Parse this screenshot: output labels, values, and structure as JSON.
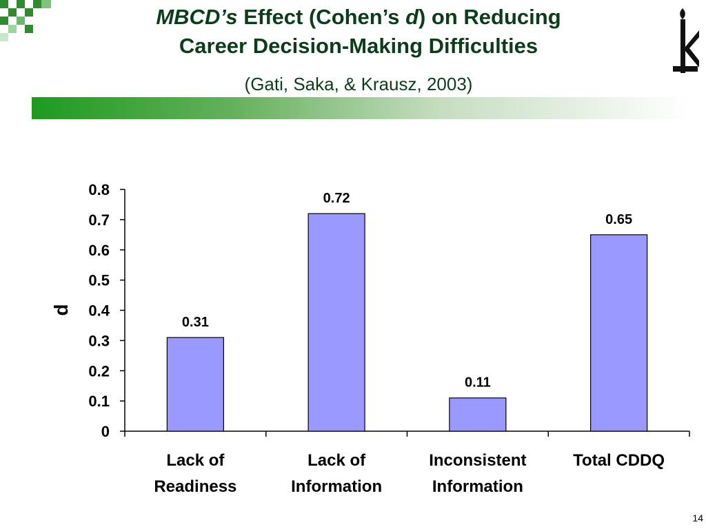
{
  "slide": {
    "title_line1_em": "MBCD’s",
    "title_line1_a": " Effect (Cohen’s ",
    "title_line1_em2": "d",
    "title_line1_b": ") on Reducing",
    "title_line2": "Career Decision-Making Difficulties",
    "subtitle": "(Gati, Saka, & Krausz, 2003)",
    "page_number": "14",
    "colors": {
      "title": "#0b3d1a",
      "bar": "#9999ff",
      "accent_green": "#1e9a1e"
    }
  },
  "chart_data": {
    "type": "bar",
    "categories": [
      [
        "Lack of",
        "Readiness"
      ],
      [
        "Lack of",
        "Information"
      ],
      [
        "Inconsistent",
        "Information"
      ],
      [
        "Total CDDQ"
      ]
    ],
    "values": [
      0.31,
      0.72,
      0.11,
      0.65
    ],
    "data_labels": [
      "0.31",
      "0.72",
      "0.11",
      "0.65"
    ],
    "ylabel": "d",
    "ylim": [
      0,
      0.8
    ],
    "yticks": [
      "0",
      "0.1",
      "0.2",
      "0.3",
      "0.4",
      "0.5",
      "0.6",
      "0.7",
      "0.8"
    ],
    "grid": false,
    "legend": "none"
  }
}
